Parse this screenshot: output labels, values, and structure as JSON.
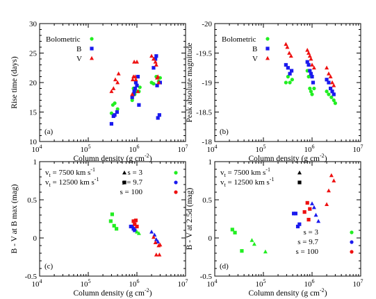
{
  "chart_data": [
    {
      "type": "scatter",
      "panel_label": "(a)",
      "xlabel": "Column density (g cm",
      "xlabel_sup": "-2",
      "xlabel_end": ")",
      "ylabel": "Rise time (days)",
      "x_scale": "log",
      "xlim": [
        10000,
        10000000
      ],
      "x_ticks": [
        {
          "v": 10000,
          "base": "10",
          "exp": "4"
        },
        {
          "v": 100000,
          "base": "10",
          "exp": "5"
        },
        {
          "v": 1000000,
          "base": "10",
          "exp": "6"
        },
        {
          "v": 10000000,
          "base": "10",
          "exp": "7"
        }
      ],
      "ylim": [
        10,
        30
      ],
      "y_ticks": [
        {
          "v": 10,
          "label": "10"
        },
        {
          "v": 15,
          "label": "15"
        },
        {
          "v": 20,
          "label": "20"
        },
        {
          "v": 25,
          "label": "25"
        },
        {
          "v": 30,
          "label": "30"
        }
      ],
      "legend": [
        {
          "label": "Bolometric",
          "color": "#22ee22",
          "marker": "circle"
        },
        {
          "label": "B",
          "color": "#1a1aee",
          "marker": "square"
        },
        {
          "label": "V",
          "color": "#ee1111",
          "marker": "triangle"
        }
      ],
      "series": [
        {
          "name": "Bolometric",
          "color": "#22ee22",
          "marker": "circle",
          "points": [
            [
              300000,
              14.8
            ],
            [
              320000,
              16.2
            ],
            [
              350000,
              16.5
            ],
            [
              400000,
              15.5
            ],
            [
              800000,
              17.0
            ],
            [
              850000,
              19.0
            ],
            [
              900000,
              18.0
            ],
            [
              950000,
              20.0
            ],
            [
              1000000,
              18.5
            ],
            [
              1100000,
              18.5
            ],
            [
              1150000,
              19.2
            ],
            [
              2000000,
              20.0
            ],
            [
              2200000,
              19.8
            ],
            [
              2500000,
              21.0
            ],
            [
              2800000,
              20.2
            ],
            [
              3000000,
              20.8
            ]
          ]
        },
        {
          "name": "B",
          "color": "#1a1aee",
          "marker": "square",
          "points": [
            [
              300000,
              13.0
            ],
            [
              330000,
              14.3
            ],
            [
              350000,
              14.5
            ],
            [
              390000,
              15.0
            ],
            [
              800000,
              17.5
            ],
            [
              850000,
              18.0
            ],
            [
              880000,
              18.5
            ],
            [
              920000,
              19.0
            ],
            [
              950000,
              20.0
            ],
            [
              1000000,
              19.5
            ],
            [
              1050000,
              21.0
            ],
            [
              1100000,
              16.2
            ],
            [
              2200000,
              22.5
            ],
            [
              2400000,
              24.0
            ],
            [
              2500000,
              24.5
            ],
            [
              2600000,
              19.5
            ],
            [
              2700000,
              14.0
            ],
            [
              2900000,
              14.5
            ],
            [
              3000000,
              20.0
            ]
          ]
        },
        {
          "name": "V",
          "color": "#ee1111",
          "marker": "triangle",
          "points": [
            [
              300000,
              18.5
            ],
            [
              330000,
              19.0
            ],
            [
              360000,
              20.5
            ],
            [
              400000,
              20.0
            ],
            [
              420000,
              21.5
            ],
            [
              800000,
              18.0
            ],
            [
              820000,
              20.5
            ],
            [
              850000,
              21.0
            ],
            [
              880000,
              23.5
            ],
            [
              920000,
              21.0
            ],
            [
              950000,
              20.5
            ],
            [
              1000000,
              23.5
            ],
            [
              1050000,
              18.5
            ],
            [
              2000000,
              24.5
            ],
            [
              2200000,
              24.0
            ],
            [
              2400000,
              23.5
            ],
            [
              2500000,
              23.0
            ],
            [
              2600000,
              20.8
            ],
            [
              2700000,
              21.0
            ],
            [
              2800000,
              20.0
            ]
          ]
        }
      ]
    },
    {
      "type": "scatter",
      "panel_label": "(b)",
      "xlabel": "Column density (g cm",
      "xlabel_sup": "-2",
      "xlabel_end": ")",
      "ylabel": "Peak absolute magnitude",
      "x_scale": "log",
      "xlim": [
        10000,
        10000000
      ],
      "x_ticks": [
        {
          "v": 10000,
          "base": "10",
          "exp": "4"
        },
        {
          "v": 100000,
          "base": "10",
          "exp": "5"
        },
        {
          "v": 1000000,
          "base": "10",
          "exp": "6"
        },
        {
          "v": 10000000,
          "base": "10",
          "exp": "7"
        }
      ],
      "ylim": [
        -18,
        -20
      ],
      "y_inverted": true,
      "y_ticks": [
        {
          "v": -20,
          "label": "-20"
        },
        {
          "v": -19.5,
          "label": "-19.5"
        },
        {
          "v": -19,
          "label": "-19"
        },
        {
          "v": -18.5,
          "label": "-18.5"
        },
        {
          "v": -18,
          "label": "-18"
        }
      ],
      "legend": [
        {
          "label": "Bolometric",
          "color": "#22ee22",
          "marker": "circle"
        },
        {
          "label": "B",
          "color": "#1a1aee",
          "marker": "square"
        },
        {
          "label": "V",
          "color": "#ee1111",
          "marker": "triangle"
        }
      ],
      "series": [
        {
          "name": "Bolometric",
          "color": "#22ee22",
          "marker": "circle",
          "points": [
            [
              290000,
              -19.0
            ],
            [
              320000,
              -19.1
            ],
            [
              350000,
              -19.0
            ],
            [
              390000,
              -19.05
            ],
            [
              800000,
              -19.2
            ],
            [
              850000,
              -19.1
            ],
            [
              900000,
              -18.9
            ],
            [
              950000,
              -18.85
            ],
            [
              1000000,
              -18.8
            ],
            [
              1100000,
              -18.9
            ],
            [
              2000000,
              -18.85
            ],
            [
              2200000,
              -18.8
            ],
            [
              2500000,
              -18.75
            ],
            [
              2800000,
              -18.7
            ],
            [
              3000000,
              -18.65
            ]
          ]
        },
        {
          "name": "B",
          "color": "#1a1aee",
          "marker": "square",
          "points": [
            [
              290000,
              -19.3
            ],
            [
              320000,
              -19.25
            ],
            [
              350000,
              -19.15
            ],
            [
              380000,
              -19.2
            ],
            [
              800000,
              -19.35
            ],
            [
              850000,
              -19.3
            ],
            [
              900000,
              -19.2
            ],
            [
              950000,
              -19.15
            ],
            [
              1000000,
              -19.1
            ],
            [
              1050000,
              -19.0
            ],
            [
              2000000,
              -19.05
            ],
            [
              2200000,
              -19.0
            ],
            [
              2400000,
              -18.9
            ],
            [
              2600000,
              -18.85
            ],
            [
              2800000,
              -18.8
            ]
          ]
        },
        {
          "name": "V",
          "color": "#ee1111",
          "marker": "triangle",
          "points": [
            [
              290000,
              -19.65
            ],
            [
              310000,
              -19.6
            ],
            [
              340000,
              -19.5
            ],
            [
              370000,
              -19.45
            ],
            [
              800000,
              -19.55
            ],
            [
              850000,
              -19.5
            ],
            [
              900000,
              -19.45
            ],
            [
              950000,
              -19.4
            ],
            [
              1000000,
              -19.3
            ],
            [
              1100000,
              -19.25
            ],
            [
              2000000,
              -19.25
            ],
            [
              2200000,
              -19.15
            ],
            [
              2400000,
              -19.1
            ],
            [
              2600000,
              -19.0
            ],
            [
              2800000,
              -18.95
            ]
          ]
        }
      ]
    },
    {
      "type": "scatter",
      "panel_label": "(c)",
      "xlabel": "Column density (g cm",
      "xlabel_sup": "-2",
      "xlabel_end": ")",
      "ylabel": "B - V at B max (mag)",
      "x_scale": "log",
      "xlim": [
        10000,
        10000000
      ],
      "x_ticks": [
        {
          "v": 10000,
          "base": "10",
          "exp": "4"
        },
        {
          "v": 100000,
          "base": "10",
          "exp": "5"
        },
        {
          "v": 1000000,
          "base": "10",
          "exp": "6"
        },
        {
          "v": 10000000,
          "base": "10",
          "exp": "7"
        }
      ],
      "ylim": [
        -0.5,
        1
      ],
      "y_ticks": [
        {
          "v": -0.5,
          "label": "-0.5"
        },
        {
          "v": 0,
          "label": "0"
        },
        {
          "v": 0.5,
          "label": "0.5"
        },
        {
          "v": 1,
          "label": "1"
        }
      ],
      "legend_vt": [
        {
          "label": "v",
          "sub": "t",
          "rest": " = 7500 km s",
          "sup": "-1",
          "marker": "triangle"
        },
        {
          "label": "v",
          "sub": "t",
          "rest": " = 12500 km s",
          "sup": "-1",
          "marker": "square"
        }
      ],
      "legend_s": [
        {
          "label": "s = 3",
          "color": "#22ee22"
        },
        {
          "label": "s = 9.7",
          "color": "#1a1aee"
        },
        {
          "label": "s = 100",
          "color": "#ee1111"
        }
      ],
      "legend_position": "top-right",
      "series": [
        {
          "name": "s = 3",
          "color": "#22ee22",
          "vt": 12500,
          "marker": "square",
          "points": [
            [
              290000,
              0.22
            ],
            [
              310000,
              0.31
            ],
            [
              340000,
              0.16
            ],
            [
              380000,
              0.12
            ]
          ]
        },
        {
          "name": "s = 9.7",
          "color": "#1a1aee",
          "vt": 12500,
          "marker": "square",
          "points": [
            [
              750000,
              0.15
            ],
            [
              800000,
              0.15
            ],
            [
              850000,
              0.12
            ],
            [
              900000,
              0.1
            ]
          ]
        },
        {
          "name": "s = 100",
          "color": "#ee1111",
          "vt": 12500,
          "marker": "square",
          "points": [
            [
              850000,
              0.22
            ],
            [
              900000,
              0.18
            ],
            [
              950000,
              0.23
            ],
            [
              1000000,
              0.15
            ]
          ]
        },
        {
          "name": "s = 3",
          "color": "#22ee22",
          "vt": 7500,
          "marker": "triangle",
          "points": [
            [
              1000000,
              0.08
            ],
            [
              1100000,
              0.06
            ]
          ]
        },
        {
          "name": "s = 9.7",
          "color": "#1a1aee",
          "vt": 7500,
          "marker": "triangle",
          "points": [
            [
              2000000,
              0.08
            ],
            [
              2300000,
              0.04
            ],
            [
              2500000,
              -0.02
            ],
            [
              2700000,
              -0.05
            ]
          ]
        },
        {
          "name": "s = 100",
          "color": "#ee1111",
          "vt": 7500,
          "marker": "triangle",
          "points": [
            [
              2200000,
              0.01
            ],
            [
              2400000,
              -0.06
            ],
            [
              2500000,
              -0.22
            ],
            [
              2800000,
              -0.1
            ],
            [
              3000000,
              -0.09
            ],
            [
              2900000,
              -0.22
            ]
          ]
        }
      ]
    },
    {
      "type": "scatter",
      "panel_label": "(d)",
      "xlabel": "Column density (g cm",
      "xlabel_sup": "-2",
      "xlabel_end": ")",
      "ylabel": "B - V at 2.5d (mag)",
      "x_scale": "log",
      "xlim": [
        10000,
        10000000
      ],
      "x_ticks": [
        {
          "v": 10000,
          "base": "10",
          "exp": "4"
        },
        {
          "v": 100000,
          "base": "10",
          "exp": "5"
        },
        {
          "v": 1000000,
          "base": "10",
          "exp": "6"
        },
        {
          "v": 10000000,
          "base": "10",
          "exp": "7"
        }
      ],
      "ylim": [
        -0.5,
        1
      ],
      "y_ticks": [
        {
          "v": -0.5,
          "label": "-0.5"
        },
        {
          "v": 0,
          "label": "0"
        },
        {
          "v": 0.5,
          "label": "0.5"
        },
        {
          "v": 1,
          "label": "1"
        }
      ],
      "legend_vt": [
        {
          "label": "v",
          "sub": "t",
          "rest": " = 7500 km s",
          "sup": "-1",
          "marker": "triangle"
        },
        {
          "label": "v",
          "sub": "t",
          "rest": " = 12500 km s",
          "sup": "-1",
          "marker": "square"
        }
      ],
      "legend_s": [
        {
          "label": "s = 3",
          "color": "#22ee22"
        },
        {
          "label": "s = 9.7",
          "color": "#1a1aee"
        },
        {
          "label": "s = 100",
          "color": "#ee1111"
        }
      ],
      "legend_position": "top-left / bottom-right",
      "series": [
        {
          "name": "s = 3",
          "color": "#22ee22",
          "vt": 12500,
          "marker": "square",
          "points": [
            [
              23000,
              0.11
            ],
            [
              26000,
              0.07
            ],
            [
              36000,
              -0.17
            ]
          ]
        },
        {
          "name": "s = 3",
          "color": "#22ee22",
          "vt": 7500,
          "marker": "triangle",
          "points": [
            [
              58000,
              -0.03
            ],
            [
              65000,
              -0.08
            ],
            [
              110000,
              -0.18
            ]
          ]
        },
        {
          "name": "s = 9.7",
          "color": "#1a1aee",
          "vt": 12500,
          "marker": "square",
          "points": [
            [
              420000,
              0.32
            ],
            [
              460000,
              0.32
            ],
            [
              510000,
              0.15
            ],
            [
              550000,
              0.18
            ]
          ]
        },
        {
          "name": "s = 100",
          "color": "#ee1111",
          "vt": 12500,
          "marker": "square",
          "points": [
            [
              700000,
              0.34
            ],
            [
              800000,
              0.46
            ],
            [
              850000,
              0.24
            ],
            [
              900000,
              0.38
            ]
          ]
        },
        {
          "name": "s = 9.7",
          "color": "#1a1aee",
          "vt": 7500,
          "marker": "triangle",
          "points": [
            [
              1000000,
              0.45
            ],
            [
              1100000,
              0.4
            ],
            [
              1200000,
              0.3
            ],
            [
              1350000,
              0.22
            ]
          ]
        },
        {
          "name": "s = 100",
          "color": "#ee1111",
          "vt": 7500,
          "marker": "triangle",
          "points": [
            [
              2000000,
              0.44
            ],
            [
              2200000,
              0.62
            ],
            [
              2500000,
              0.82
            ],
            [
              2800000,
              0.75
            ]
          ]
        }
      ]
    }
  ]
}
